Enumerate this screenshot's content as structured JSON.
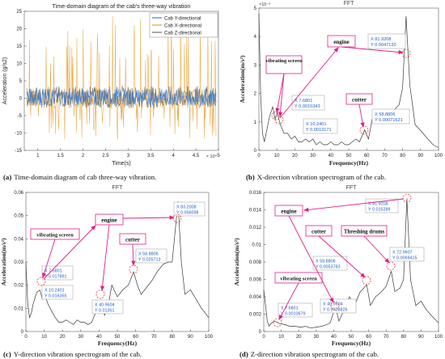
{
  "panels": [
    {
      "id": "a",
      "caption_letter": "(a)",
      "caption_text": "Time-domain diagram of cab three-way vibration.",
      "title": "Time-domain diagram of the cab's three-way vibration",
      "xlabel": "Time(s)",
      "ylabel": "Acceleration (g/s2)",
      "x_exponent": "× 10⁴",
      "xticks": [
        "1",
        "1.5",
        "2",
        "2.5",
        "3",
        "3.5",
        "4",
        "4.5",
        "5"
      ],
      "yticks": [
        "-15",
        "-10",
        "-5",
        "0",
        "5",
        "10",
        "15",
        "20",
        "25"
      ],
      "legend": [
        "Cab Y-directional",
        "Cab X-directional",
        "Cab Z-directional"
      ]
    },
    {
      "id": "b",
      "caption_letter": "(b)",
      "caption_text": "X-direction vibration spectrogram of the cab.",
      "title": "FFT",
      "xlabel": "Frequency(Hz)",
      "ylabel": "Acceleration(m/s²)",
      "y_exponent": "×10⁻³",
      "xticks": [
        "0",
        "10",
        "20",
        "30",
        "40",
        "50",
        "60",
        "70",
        "80",
        "90",
        "100"
      ],
      "yticks": [
        "0",
        "1",
        "2",
        "3",
        "4",
        "5"
      ],
      "labels": [
        "vibrating screen",
        "engine",
        "cutter"
      ],
      "datatips": [
        {
          "x": "X 7.6801",
          "y": "Y 0.0015343"
        },
        {
          "x": "X 10.2401",
          "y": "Y 0.0013171"
        },
        {
          "x": "X 58.8806",
          "y": "Y 0.00071621"
        },
        {
          "x": "X 81.9208",
          "y": "Y 0.0047133"
        }
      ]
    },
    {
      "id": "c",
      "caption_letter": "(c)",
      "caption_text": "Y-direction vibration spectrogram of the cab.",
      "title": "FFT",
      "xlabel": "Frequency(Hz)",
      "ylabel": "Acceleration(m/s²)",
      "xticks": [
        "0",
        "10",
        "20",
        "30",
        "40",
        "50",
        "60",
        "70",
        "80",
        "90",
        "100"
      ],
      "yticks": [
        "0",
        "0.01",
        "0.02",
        "0.03",
        "0.04",
        "0.05",
        "0.06"
      ],
      "labels": [
        "vibrating screen",
        "engine",
        "cutter"
      ],
      "datatips": [
        {
          "x": "X 7.6801",
          "y": "Y 0.017891"
        },
        {
          "x": "X 10.2401",
          "y": "Y 0.016355"
        },
        {
          "x": "X 40.9604",
          "y": "Y 0.01351"
        },
        {
          "x": "X 58.8806",
          "y": "Y 0.025713"
        },
        {
          "x": "X 83.2008",
          "y": "Y 0.056098"
        }
      ]
    },
    {
      "id": "d",
      "caption_letter": "(d)",
      "caption_text": "Z-direction vibration spectrogram of the cab.",
      "title": "FFT",
      "xlabel": "Frequency(Hz)",
      "ylabel": "Acceleration(m/s²)",
      "xticks": [
        "0",
        "10",
        "20",
        "30",
        "40",
        "50",
        "60",
        "70",
        "80",
        "90",
        "100"
      ],
      "yticks": [
        "0",
        "0.002",
        "0.004",
        "0.006",
        "0.008",
        "0.01",
        "0.012",
        "0.014",
        "0.016"
      ],
      "labels": [
        "engine",
        "cutter",
        "Threshing drums",
        "vibrating screen"
      ],
      "datatips": [
        {
          "x": "X 7.6801",
          "y": "Y 0.0010679"
        },
        {
          "x": "X 40.9604",
          "y": "Y 0.0028826"
        },
        {
          "x": "X 58.8806",
          "y": "Y 0.0053783"
        },
        {
          "x": "X 72.9607",
          "y": "Y 0.0069415"
        },
        {
          "x": "X 81.9208",
          "y": "Y 0.015289"
        }
      ]
    }
  ],
  "colors": {
    "y_series": "#3b7fd4",
    "x_series": "#e8a33a",
    "z_series": "#6d6d6d",
    "spectrum": "#3a3a3a",
    "arrow": "#e0208a",
    "label_border": "#e0208a",
    "datatip_text": "#1f5fbf",
    "marker": "#e23a2a"
  },
  "chart_data": [
    {
      "type": "line",
      "title": "Time-domain diagram of the cab's three-way vibration",
      "xlabel": "Time(s)",
      "ylabel": "Acceleration (g/s2)",
      "xlim": [
        7000,
        50000
      ],
      "ylim": [
        -15,
        25
      ],
      "series": [
        {
          "name": "Cab Y-directional",
          "amplitude_range": [
            -3,
            4
          ]
        },
        {
          "name": "Cab X-directional",
          "amplitude_range": [
            -12,
            24
          ]
        },
        {
          "name": "Cab Z-directional",
          "amplitude_range": [
            -4,
            5
          ]
        }
      ]
    },
    {
      "type": "line",
      "title": "FFT",
      "xlabel": "Frequency(Hz)",
      "ylabel": "Acceleration(m/s²)",
      "xlim": [
        0,
        100
      ],
      "ylim": [
        0,
        0.005
      ],
      "x": [
        0,
        1,
        2,
        3,
        4,
        5,
        6,
        7,
        7.68,
        9,
        10.24,
        12,
        14,
        16,
        18,
        20,
        22,
        24,
        26,
        28,
        30,
        32,
        34,
        36,
        38,
        40,
        42,
        44,
        46,
        48,
        50,
        52,
        54,
        56,
        58.88,
        61,
        63,
        66,
        69,
        72,
        75,
        78,
        80,
        81.92,
        84,
        87,
        90,
        94,
        97,
        100
      ],
      "y": [
        0.0048,
        0.0019,
        0.0006,
        0.0003,
        0.0006,
        0.0009,
        0.0012,
        0.0014,
        0.00153,
        0.0011,
        0.00132,
        0.0009,
        0.0006,
        0.0006,
        0.0004,
        0.0005,
        0.0003,
        0.0003,
        0.0004,
        0.0003,
        0.0004,
        0.0002,
        0.0003,
        0.0002,
        0.0002,
        0.0003,
        0.0002,
        0.0002,
        0.0003,
        0.0002,
        0.0002,
        0.0003,
        0.0004,
        0.0003,
        0.00072,
        0.0004,
        0.0011,
        0.0012,
        0.0012,
        0.0013,
        0.0014,
        0.0016,
        0.0022,
        0.00471,
        0.0023,
        0.0009,
        0.0007,
        0.0004,
        0.0002,
        0.0001
      ]
    },
    {
      "type": "line",
      "title": "FFT",
      "xlabel": "Frequency(Hz)",
      "ylabel": "Acceleration(m/s²)",
      "xlim": [
        0,
        100
      ],
      "ylim": [
        0,
        0.06
      ],
      "x": [
        0,
        1,
        2,
        3,
        4,
        6,
        7.68,
        9,
        10.24,
        12,
        14,
        16,
        18,
        20,
        22,
        24,
        26,
        28,
        30,
        32,
        34,
        36,
        38,
        40.96,
        43,
        45,
        47,
        50,
        53,
        56,
        58.88,
        61,
        63,
        66,
        69,
        72,
        75,
        78,
        80,
        83.2,
        85,
        87,
        90,
        93,
        96,
        100
      ],
      "y": [
        0.03,
        0.012,
        0.006,
        0.008,
        0.012,
        0.017,
        0.0179,
        0.014,
        0.0164,
        0.012,
        0.009,
        0.006,
        0.004,
        0.004,
        0.005,
        0.004,
        0.003,
        0.005,
        0.004,
        0.004,
        0.003,
        0.004,
        0.008,
        0.0135,
        0.007,
        0.011,
        0.02,
        0.015,
        0.018,
        0.02,
        0.0257,
        0.02,
        0.016,
        0.019,
        0.022,
        0.026,
        0.029,
        0.03,
        0.03,
        0.0561,
        0.03,
        0.016,
        0.018,
        0.014,
        0.01,
        0.006
      ]
    },
    {
      "type": "line",
      "title": "FFT",
      "xlabel": "Frequency(Hz)",
      "ylabel": "Acceleration(m/s²)",
      "xlim": [
        0,
        100
      ],
      "ylim": [
        0,
        0.016
      ],
      "x": [
        0,
        1,
        2,
        3,
        4,
        6,
        7.68,
        9,
        12,
        15,
        18,
        21,
        24,
        27,
        30,
        33,
        36,
        38,
        40.96,
        43,
        46,
        49,
        52,
        55,
        58.88,
        61,
        64,
        67,
        70,
        72.96,
        75,
        78,
        80,
        81.92,
        84,
        87,
        90,
        93,
        96,
        100
      ],
      "y": [
        0.0048,
        0.003,
        0.0012,
        0.0006,
        0.0009,
        0.0012,
        0.00107,
        0.0009,
        0.0008,
        0.0006,
        0.0006,
        0.0005,
        0.0006,
        0.0004,
        0.0005,
        0.0006,
        0.0008,
        0.001,
        0.00288,
        0.0012,
        0.0025,
        0.004,
        0.003,
        0.0045,
        0.00538,
        0.003,
        0.004,
        0.0045,
        0.0052,
        0.00694,
        0.0046,
        0.005,
        0.006,
        0.0153,
        0.006,
        0.003,
        0.0035,
        0.0025,
        0.0018,
        0.001
      ]
    }
  ]
}
